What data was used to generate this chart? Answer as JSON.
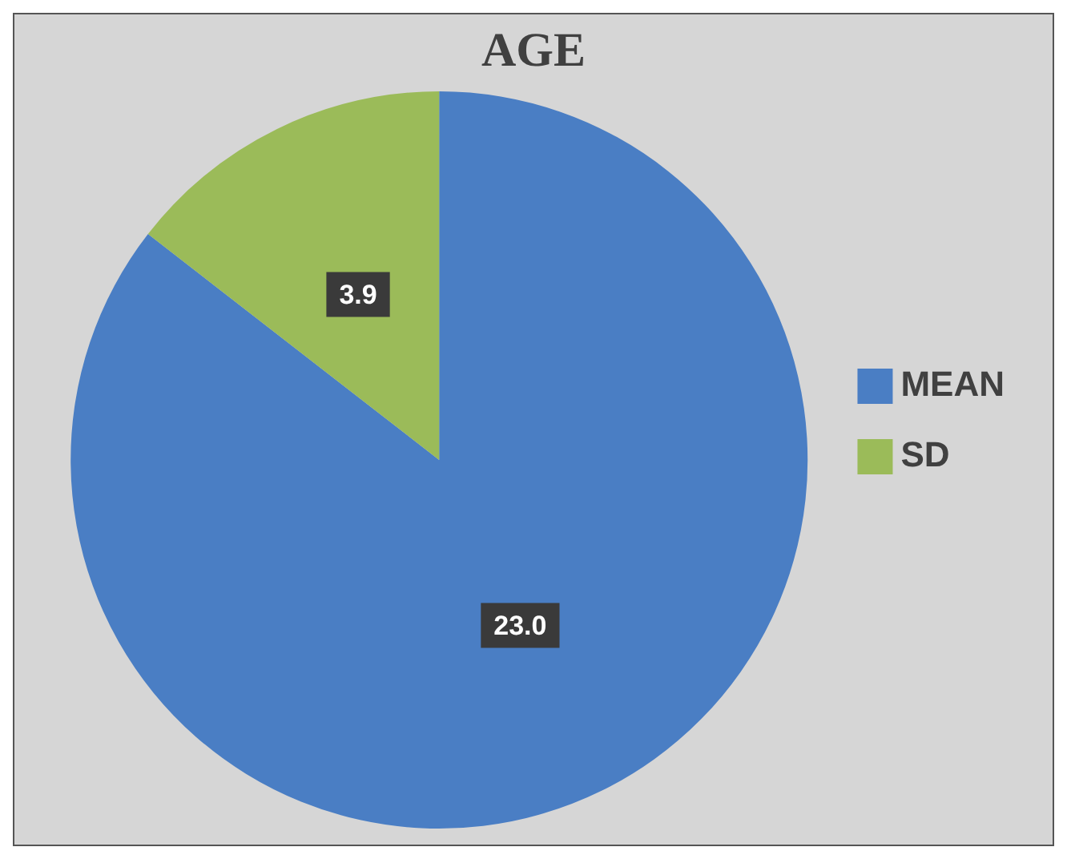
{
  "chart_data": {
    "type": "pie",
    "title": "AGE",
    "categories": [
      "MEAN",
      "SD"
    ],
    "values": [
      23.0,
      3.9
    ],
    "value_labels": [
      "23.0",
      "3.9"
    ],
    "colors": [
      "#4a7ec4",
      "#9bbb59"
    ],
    "legend": "right"
  }
}
